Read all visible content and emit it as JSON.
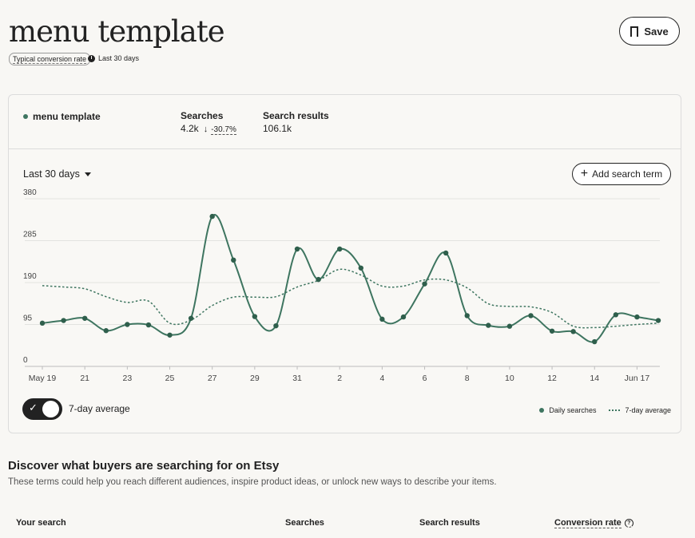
{
  "page": {
    "title": "menu template",
    "badge": "Typical conversion rate",
    "period": "Last 30 days",
    "save_label": "Save"
  },
  "summary": {
    "term": "menu template",
    "searches_label": "Searches",
    "searches_value": "4.2k",
    "searches_change": "-30.7%",
    "results_label": "Search results",
    "results_value": "106.1k"
  },
  "controls": {
    "range_label": "Last 30 days",
    "add_label": "Add search term",
    "toggle_label": "7-day average",
    "toggle_on": true
  },
  "chart_data": {
    "type": "line",
    "x": [
      "May 19",
      "May 20",
      "May 21",
      "May 22",
      "May 23",
      "May 24",
      "May 25",
      "May 26",
      "May 27",
      "May 28",
      "May 29",
      "May 30",
      "May 31",
      "Jun 1",
      "Jun 2",
      "Jun 3",
      "Jun 4",
      "Jun 5",
      "Jun 6",
      "Jun 7",
      "Jun 8",
      "Jun 9",
      "Jun 10",
      "Jun 11",
      "Jun 12",
      "Jun 13",
      "Jun 14",
      "Jun 15",
      "Jun 16",
      "Jun 17"
    ],
    "x_tick_labels": [
      "May 19",
      "21",
      "23",
      "25",
      "27",
      "29",
      "31",
      "2",
      "4",
      "6",
      "8",
      "10",
      "12",
      "14",
      "Jun 17"
    ],
    "series": [
      {
        "name": "Daily searches",
        "style": "solid-with-markers",
        "values": [
          98,
          104,
          109,
          81,
          95,
          94,
          71,
          109,
          340,
          241,
          113,
          92,
          266,
          197,
          266,
          223,
          107,
          112,
          187,
          257,
          115,
          93,
          91,
          115,
          80,
          79,
          56,
          117,
          112,
          104
        ]
      },
      {
        "name": "7-day average",
        "style": "dotted",
        "values": [
          183,
          180,
          176,
          158,
          145,
          148,
          98,
          105,
          138,
          157,
          157,
          158,
          180,
          195,
          220,
          207,
          182,
          182,
          196,
          196,
          178,
          142,
          136,
          135,
          122,
          91,
          88,
          91,
          95,
          98
        ]
      }
    ],
    "y_ticks": [
      0,
      95,
      190,
      285,
      380
    ],
    "ylim": [
      0,
      380
    ],
    "grid": true,
    "legend": "bottom-right",
    "colors": {
      "line": "#3e7560",
      "grid": "#e3e3e0",
      "axis": "#bdbdbd"
    }
  },
  "table": {
    "section_title": "Discover what buyers are searching for on Etsy",
    "section_subtitle": "These terms could help you reach different audiences, inspire product ideas, or unlock new ways to describe your items.",
    "columns": [
      "Your search",
      "Searches",
      "Search results",
      "Conversion rate"
    ]
  }
}
